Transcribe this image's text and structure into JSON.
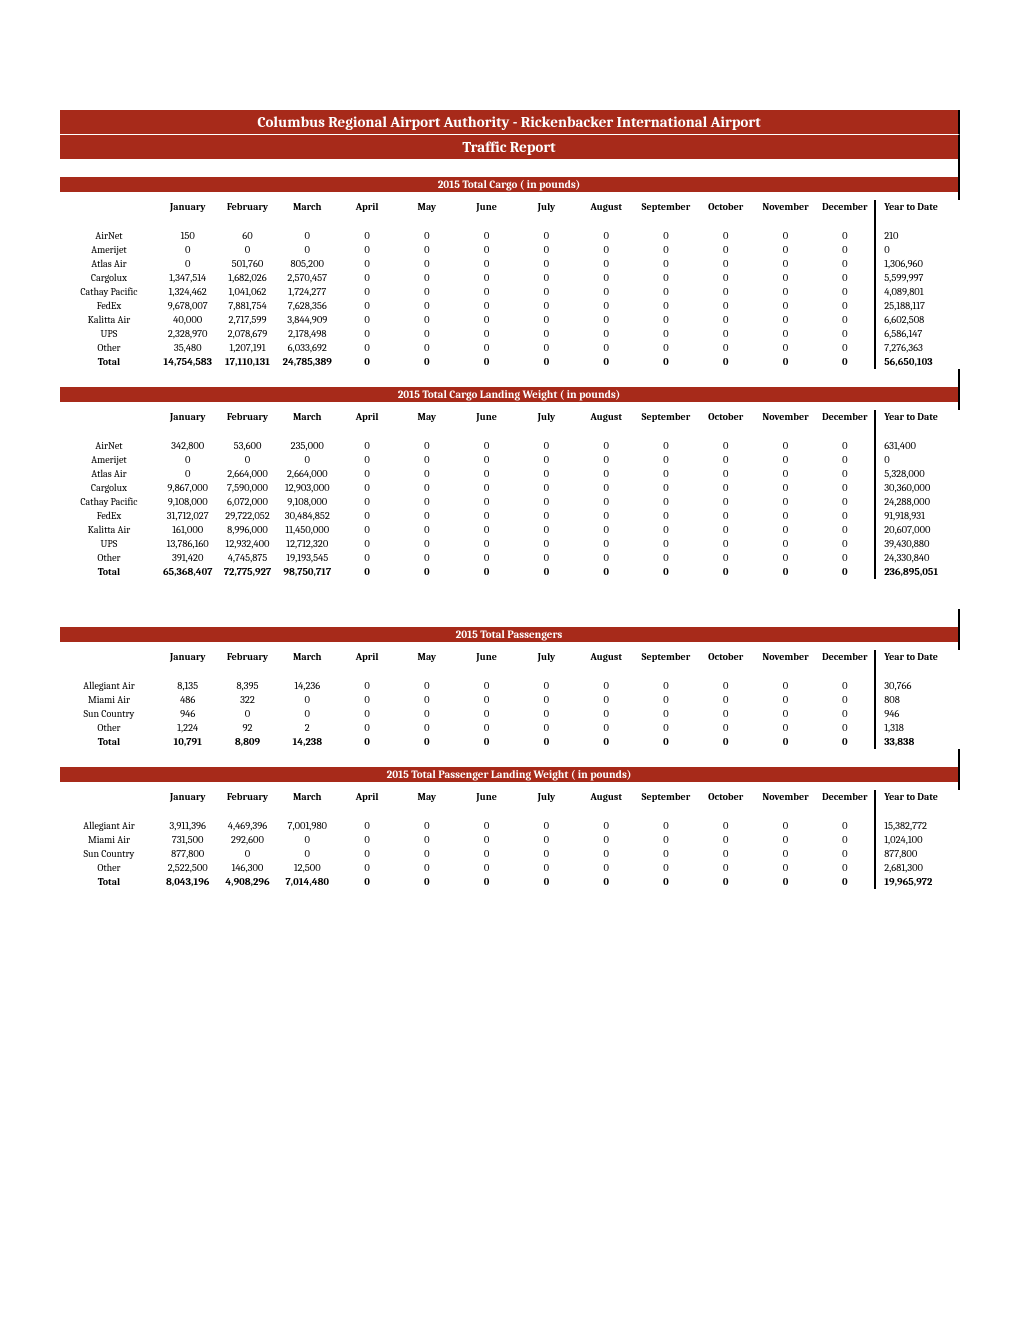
{
  "header": {
    "title": "Columbus Regional Airport Authority - Rickenbacker International Airport",
    "subtitle": "Traffic Report"
  },
  "columns": [
    "January",
    "February",
    "March",
    "April",
    "May",
    "June",
    "July",
    "August",
    "September",
    "October",
    "November",
    "December"
  ],
  "ytd_label": "Year to Date",
  "sections": [
    {
      "title": "2015 Total Cargo ( in pounds)",
      "rows": [
        {
          "label": "AirNet",
          "vals": [
            "150",
            "60",
            "0",
            "0",
            "0",
            "0",
            "0",
            "0",
            "0",
            "0",
            "0",
            "0"
          ],
          "ytd": "210"
        },
        {
          "label": "Amerijet",
          "vals": [
            "0",
            "0",
            "0",
            "0",
            "0",
            "0",
            "0",
            "0",
            "0",
            "0",
            "0",
            "0"
          ],
          "ytd": "0"
        },
        {
          "label": "Atlas Air",
          "vals": [
            "0",
            "501,760",
            "805,200",
            "0",
            "0",
            "0",
            "0",
            "0",
            "0",
            "0",
            "0",
            "0"
          ],
          "ytd": "1,306,960"
        },
        {
          "label": "Cargolux",
          "vals": [
            "1,347,514",
            "1,682,026",
            "2,570,457",
            "0",
            "0",
            "0",
            "0",
            "0",
            "0",
            "0",
            "0",
            "0"
          ],
          "ytd": "5,599,997"
        },
        {
          "label": "Cathay Pacific",
          "vals": [
            "1,324,462",
            "1,041,062",
            "1,724,277",
            "0",
            "0",
            "0",
            "0",
            "0",
            "0",
            "0",
            "0",
            "0"
          ],
          "ytd": "4,089,801"
        },
        {
          "label": "FedEx",
          "vals": [
            "9,678,007",
            "7,881,754",
            "7,628,356",
            "0",
            "0",
            "0",
            "0",
            "0",
            "0",
            "0",
            "0",
            "0"
          ],
          "ytd": "25,188,117"
        },
        {
          "label": "Kalitta Air",
          "vals": [
            "40,000",
            "2,717,599",
            "3,844,909",
            "0",
            "0",
            "0",
            "0",
            "0",
            "0",
            "0",
            "0",
            "0"
          ],
          "ytd": "6,602,508"
        },
        {
          "label": "UPS",
          "vals": [
            "2,328,970",
            "2,078,679",
            "2,178,498",
            "0",
            "0",
            "0",
            "0",
            "0",
            "0",
            "0",
            "0",
            "0"
          ],
          "ytd": "6,586,147"
        },
        {
          "label": "Other",
          "vals": [
            "35,480",
            "1,207,191",
            "6,033,692",
            "0",
            "0",
            "0",
            "0",
            "0",
            "0",
            "0",
            "0",
            "0"
          ],
          "ytd": "7,276,363"
        }
      ],
      "total": {
        "label": "Total",
        "vals": [
          "14,754,583",
          "17,110,131",
          "24,785,389",
          "0",
          "0",
          "0",
          "0",
          "0",
          "0",
          "0",
          "0",
          "0"
        ],
        "ytd": "56,650,103"
      }
    },
    {
      "title": "2015 Total Cargo Landing Weight ( in pounds)",
      "rows": [
        {
          "label": "AirNet",
          "vals": [
            "342,800",
            "53,600",
            "235,000",
            "0",
            "0",
            "0",
            "0",
            "0",
            "0",
            "0",
            "0",
            "0"
          ],
          "ytd": "631,400"
        },
        {
          "label": "Amerijet",
          "vals": [
            "0",
            "0",
            "0",
            "0",
            "0",
            "0",
            "0",
            "0",
            "0",
            "0",
            "0",
            "0"
          ],
          "ytd": "0"
        },
        {
          "label": "Atlas Air",
          "vals": [
            "0",
            "2,664,000",
            "2,664,000",
            "0",
            "0",
            "0",
            "0",
            "0",
            "0",
            "0",
            "0",
            "0"
          ],
          "ytd": "5,328,000"
        },
        {
          "label": "Cargolux",
          "vals": [
            "9,867,000",
            "7,590,000",
            "12,903,000",
            "0",
            "0",
            "0",
            "0",
            "0",
            "0",
            "0",
            "0",
            "0"
          ],
          "ytd": "30,360,000"
        },
        {
          "label": "Cathay Pacific",
          "vals": [
            "9,108,000",
            "6,072,000",
            "9,108,000",
            "0",
            "0",
            "0",
            "0",
            "0",
            "0",
            "0",
            "0",
            "0"
          ],
          "ytd": "24,288,000"
        },
        {
          "label": "FedEx",
          "vals": [
            "31,712,027",
            "29,722,052",
            "30,484,852",
            "0",
            "0",
            "0",
            "0",
            "0",
            "0",
            "0",
            "0",
            "0"
          ],
          "ytd": "91,918,931"
        },
        {
          "label": "Kalitta Air",
          "vals": [
            "161,000",
            "8,996,000",
            "11,450,000",
            "0",
            "0",
            "0",
            "0",
            "0",
            "0",
            "0",
            "0",
            "0"
          ],
          "ytd": "20,607,000"
        },
        {
          "label": "UPS",
          "vals": [
            "13,786,160",
            "12,932,400",
            "12,712,320",
            "0",
            "0",
            "0",
            "0",
            "0",
            "0",
            "0",
            "0",
            "0"
          ],
          "ytd": "39,430,880"
        },
        {
          "label": "Other",
          "vals": [
            "391,420",
            "4,745,875",
            "19,193,545",
            "0",
            "0",
            "0",
            "0",
            "0",
            "0",
            "0",
            "0",
            "0"
          ],
          "ytd": "24,330,840"
        }
      ],
      "total": {
        "label": "Total",
        "vals": [
          "65,368,407",
          "72,775,927",
          "98,750,717",
          "0",
          "0",
          "0",
          "0",
          "0",
          "0",
          "0",
          "0",
          "0"
        ],
        "ytd": "236,895,051"
      }
    },
    {
      "title": "2015 Total Passengers",
      "rows": [
        {
          "label": "Allegiant Air",
          "vals": [
            "8,135",
            "8,395",
            "14,236",
            "0",
            "0",
            "0",
            "0",
            "0",
            "0",
            "0",
            "0",
            "0"
          ],
          "ytd": "30,766"
        },
        {
          "label": "Miami Air",
          "vals": [
            "486",
            "322",
            "0",
            "0",
            "0",
            "0",
            "0",
            "0",
            "0",
            "0",
            "0",
            "0"
          ],
          "ytd": "808"
        },
        {
          "label": "Sun Country",
          "vals": [
            "946",
            "0",
            "0",
            "0",
            "0",
            "0",
            "0",
            "0",
            "0",
            "0",
            "0",
            "0"
          ],
          "ytd": "946"
        },
        {
          "label": "Other",
          "vals": [
            "1,224",
            "92",
            "2",
            "0",
            "0",
            "0",
            "0",
            "0",
            "0",
            "0",
            "0",
            "0"
          ],
          "ytd": "1,318"
        }
      ],
      "total": {
        "label": "Total",
        "vals": [
          "10,791",
          "8,809",
          "14,238",
          "0",
          "0",
          "0",
          "0",
          "0",
          "0",
          "0",
          "0",
          "0"
        ],
        "ytd": "33,838"
      }
    },
    {
      "title": "2015 Total Passenger Landing Weight ( in pounds)",
      "rows": [
        {
          "label": "Allegiant Air",
          "vals": [
            "3,911,396",
            "4,469,396",
            "7,001,980",
            "0",
            "0",
            "0",
            "0",
            "0",
            "0",
            "0",
            "0",
            "0"
          ],
          "ytd": "15,382,772"
        },
        {
          "label": "Miami Air",
          "vals": [
            "731,500",
            "292,600",
            "0",
            "0",
            "0",
            "0",
            "0",
            "0",
            "0",
            "0",
            "0",
            "0"
          ],
          "ytd": "1,024,100"
        },
        {
          "label": "Sun Country",
          "vals": [
            "877,800",
            "0",
            "0",
            "0",
            "0",
            "0",
            "0",
            "0",
            "0",
            "0",
            "0",
            "0"
          ],
          "ytd": "877,800"
        },
        {
          "label": "Other",
          "vals": [
            "2,522,500",
            "146,300",
            "12,500",
            "0",
            "0",
            "0",
            "0",
            "0",
            "0",
            "0",
            "0",
            "0"
          ],
          "ytd": "2,681,300"
        }
      ],
      "total": {
        "label": "Total",
        "vals": [
          "8,043,196",
          "4,908,296",
          "7,014,480",
          "0",
          "0",
          "0",
          "0",
          "0",
          "0",
          "0",
          "0",
          "0"
        ],
        "ytd": "19,965,972"
      }
    }
  ],
  "section_gaps": [
    0,
    0,
    1,
    0
  ]
}
